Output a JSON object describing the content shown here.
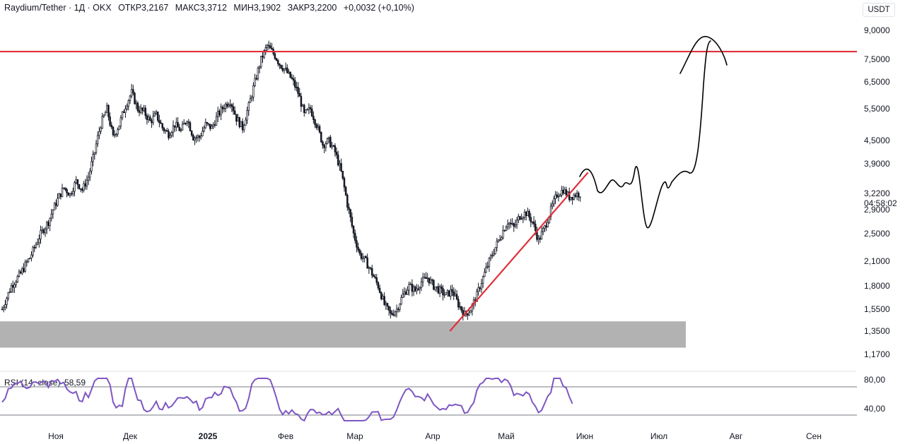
{
  "header": {
    "symbol": "Raydium/Tether · 1Д · OKX",
    "open": "ОТКР3,2167",
    "high": "МАКС3,3712",
    "low": "МИН3,1902",
    "close": "ЗАКР3,2200",
    "change": "+0,0032 (+0,10%)",
    "currency": "USDT"
  },
  "chart_data": [
    {
      "type": "candlestick",
      "price_ticks": [
        "9,0000",
        "7,5000",
        "6,5000",
        "5,5000",
        "4,5000",
        "3,9000",
        "3,2200",
        "2,9000",
        "2,5000",
        "2,1000",
        "1,8000",
        "1,5500",
        "1,3500",
        "1,1700"
      ],
      "last_price": "3,2200",
      "countdown": "04:58:02",
      "x_ticks": [
        "Ноя",
        "Дек",
        "2025",
        "Фев",
        "Мар",
        "Апр",
        "Май",
        "Июн",
        "Июл",
        "Авг",
        "Сен"
      ],
      "resistance_level": 7.9,
      "support_zone": [
        1.2,
        1.4
      ],
      "trendline": {
        "from": {
          "date": "Apr 7 2025",
          "price": 1.35
        },
        "to": {
          "date": "Jun 1 2025",
          "price": 3.7
        }
      },
      "colors": {
        "resistance": "#e0303b",
        "support_zone": "#b2b2b2",
        "candle": "#131722",
        "drawing": "#000000"
      }
    },
    {
      "type": "line",
      "title": "RSI (14, close)",
      "last_value": "58,59",
      "y_ticks": [
        "80,00",
        "40,00"
      ],
      "colors": {
        "line": "#7e57c2"
      }
    }
  ]
}
